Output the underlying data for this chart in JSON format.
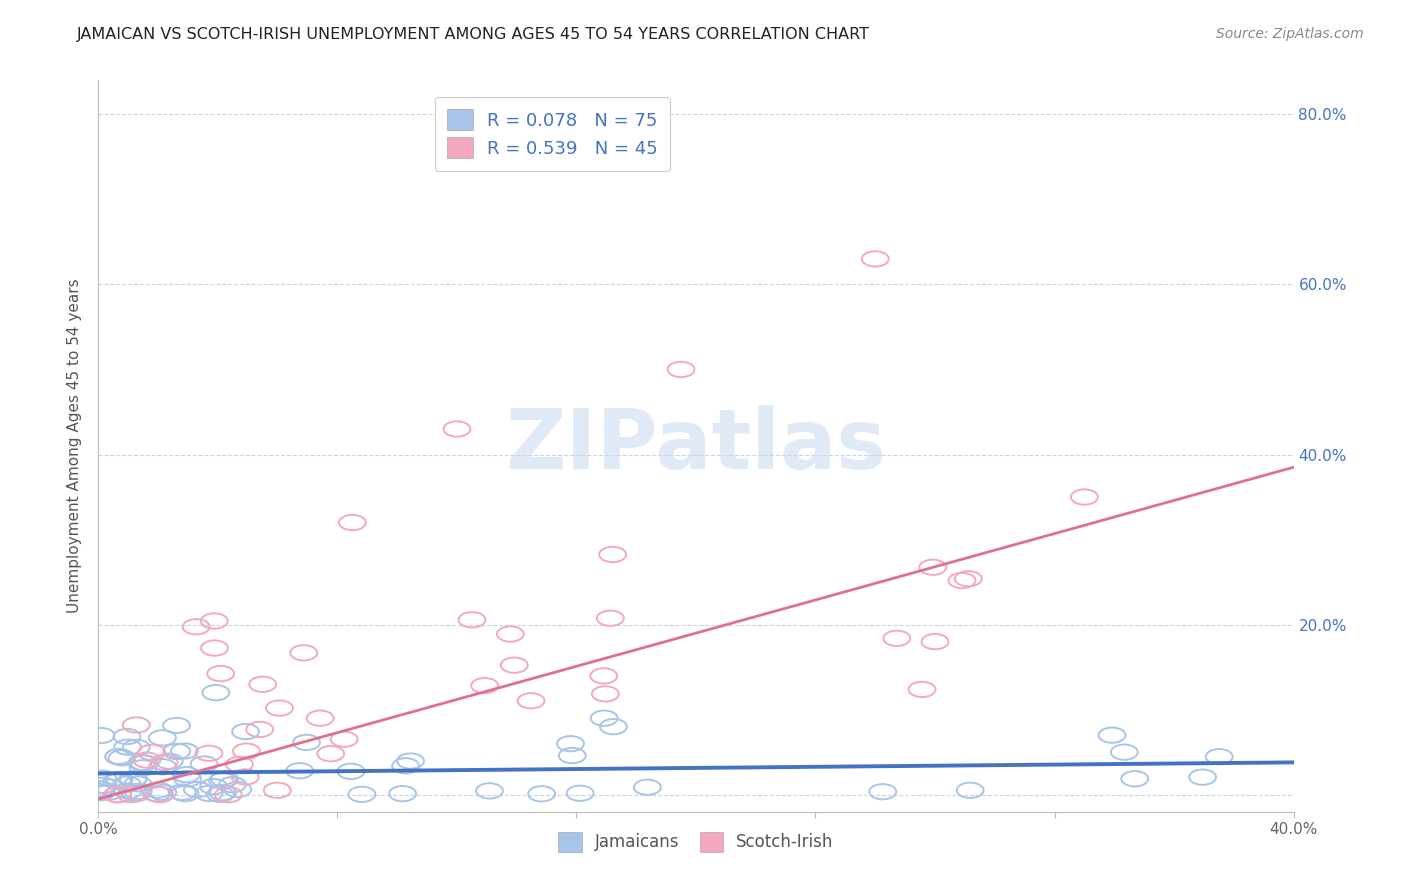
{
  "title": "JAMAICAN VS SCOTCH-IRISH UNEMPLOYMENT AMONG AGES 45 TO 54 YEARS CORRELATION CHART",
  "source": "Source: ZipAtlas.com",
  "ylabel": "Unemployment Among Ages 45 to 54 years",
  "xlim": [
    0.0,
    0.4
  ],
  "ylim": [
    -0.02,
    0.84
  ],
  "ytick_vals": [
    0.0,
    0.2,
    0.4,
    0.6,
    0.8
  ],
  "ytick_labels": [
    "",
    "20.0%",
    "40.0%",
    "60.0%",
    "80.0%"
  ],
  "jamaican_color": "#a8c4e8",
  "scotch_irish_color": "#f4a8be",
  "jamaican_line_color": "#4472c4",
  "scotch_irish_line_color": "#e07090",
  "legend_text_color": "#4472c4",
  "watermark_color": "#c8d8f0",
  "background_color": "#ffffff",
  "grid_color": "#c8d4e8",
  "title_fontsize": 11.5,
  "axis_label_fontsize": 11,
  "legend_fontsize": 13,
  "tick_fontsize": 11
}
